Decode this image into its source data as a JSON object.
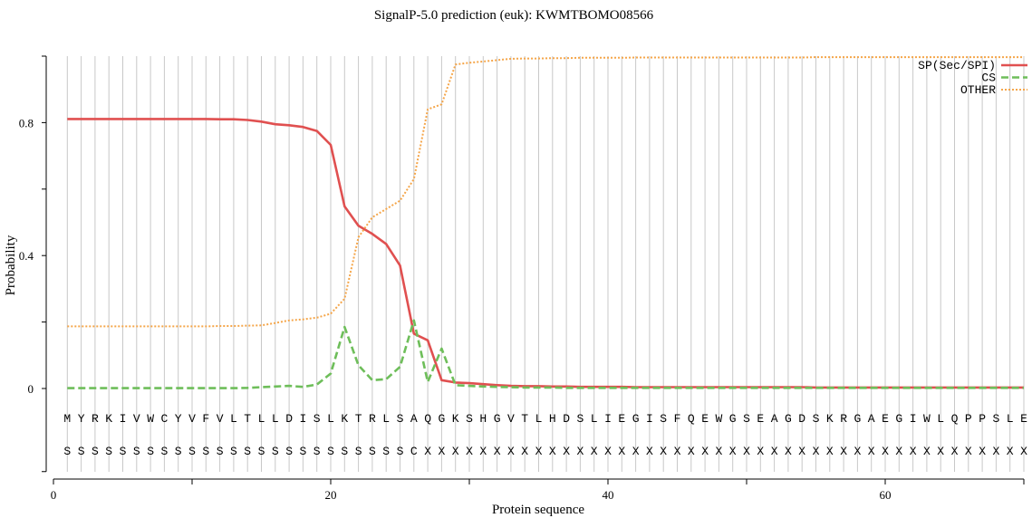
{
  "chart_data": {
    "type": "line",
    "title": "SignalP-5.0 prediction (euk):  KWMTBOMO08566",
    "xlabel": "Protein sequence",
    "ylabel": "Probability",
    "xlim": [
      0,
      70
    ],
    "ylim": [
      -0.25,
      1.0
    ],
    "xticks": [
      0,
      20,
      40,
      60
    ],
    "yticks": [
      0,
      0.4,
      0.8
    ],
    "grid": "vertical line at each residue position",
    "legend_position": "top-right",
    "sequence": [
      "M",
      "Y",
      "R",
      "K",
      "I",
      "V",
      "W",
      "C",
      "Y",
      "V",
      "F",
      "V",
      "L",
      "T",
      "L",
      "L",
      "D",
      "I",
      "S",
      "L",
      "K",
      "T",
      "R",
      "L",
      "S",
      "A",
      "Q",
      "G",
      "K",
      "S",
      "H",
      "G",
      "V",
      "T",
      "L",
      "H",
      "D",
      "S",
      "L",
      "I",
      "E",
      "G",
      "I",
      "S",
      "F",
      "Q",
      "E",
      "W",
      "G",
      "S",
      "E",
      "A",
      "G",
      "D",
      "S",
      "K",
      "R",
      "G",
      "A",
      "E",
      "G",
      "I",
      "W",
      "L",
      "Q",
      "P",
      "P",
      "S",
      "L",
      "E"
    ],
    "labels": [
      "S",
      "S",
      "S",
      "S",
      "S",
      "S",
      "S",
      "S",
      "S",
      "S",
      "S",
      "S",
      "S",
      "S",
      "S",
      "S",
      "S",
      "S",
      "S",
      "S",
      "S",
      "S",
      "S",
      "S",
      "S",
      "C",
      "X",
      "X",
      "X",
      "X",
      "X",
      "X",
      "X",
      "X",
      "X",
      "X",
      "X",
      "X",
      "X",
      "X",
      "X",
      "X",
      "X",
      "X",
      "X",
      "X",
      "X",
      "X",
      "X",
      "X",
      "X",
      "X",
      "X",
      "X",
      "X",
      "X",
      "X",
      "X",
      "X",
      "X",
      "X",
      "X",
      "X",
      "X",
      "X",
      "X",
      "X",
      "X",
      "X",
      "X"
    ],
    "series": [
      {
        "name": "SP(Sec/SPI)",
        "color": "#e05050",
        "style": "solid",
        "values": [
          0.811,
          0.811,
          0.811,
          0.811,
          0.811,
          0.811,
          0.811,
          0.811,
          0.811,
          0.811,
          0.811,
          0.81,
          0.81,
          0.808,
          0.803,
          0.795,
          0.792,
          0.787,
          0.775,
          0.733,
          0.548,
          0.49,
          0.465,
          0.435,
          0.37,
          0.165,
          0.145,
          0.025,
          0.018,
          0.016,
          0.013,
          0.01,
          0.008,
          0.007,
          0.007,
          0.006,
          0.006,
          0.005,
          0.005,
          0.005,
          0.005,
          0.004,
          0.004,
          0.004,
          0.004,
          0.004,
          0.004,
          0.004,
          0.004,
          0.004,
          0.004,
          0.004,
          0.004,
          0.004,
          0.003,
          0.003,
          0.003,
          0.003,
          0.003,
          0.003,
          0.003,
          0.003,
          0.003,
          0.003,
          0.003,
          0.003,
          0.003,
          0.003,
          0.003,
          0.003
        ]
      },
      {
        "name": "CS",
        "color": "#6ebe5a",
        "style": "dashed",
        "values": [
          0.001,
          0.001,
          0.001,
          0.001,
          0.001,
          0.001,
          0.001,
          0.001,
          0.001,
          0.001,
          0.001,
          0.001,
          0.001,
          0.002,
          0.004,
          0.006,
          0.008,
          0.005,
          0.012,
          0.045,
          0.185,
          0.07,
          0.025,
          0.028,
          0.065,
          0.205,
          0.02,
          0.12,
          0.01,
          0.008,
          0.006,
          0.005,
          0.004,
          0.003,
          0.003,
          0.003,
          0.002,
          0.002,
          0.002,
          0.002,
          0.002,
          0.002,
          0.002,
          0.002,
          0.002,
          0.002,
          0.002,
          0.002,
          0.002,
          0.002,
          0.002,
          0.002,
          0.002,
          0.002,
          0.002,
          0.002,
          0.002,
          0.002,
          0.002,
          0.002,
          0.002,
          0.002,
          0.002,
          0.002,
          0.002,
          0.002,
          0.002,
          0.002,
          0.002,
          0.002
        ]
      },
      {
        "name": "OTHER",
        "color": "#f5a64a",
        "style": "dotted",
        "values": [
          0.187,
          0.187,
          0.187,
          0.187,
          0.187,
          0.187,
          0.187,
          0.187,
          0.187,
          0.187,
          0.187,
          0.188,
          0.188,
          0.189,
          0.19,
          0.197,
          0.205,
          0.208,
          0.213,
          0.225,
          0.27,
          0.455,
          0.515,
          0.54,
          0.565,
          0.63,
          0.84,
          0.855,
          0.975,
          0.98,
          0.984,
          0.988,
          0.992,
          0.993,
          0.993,
          0.994,
          0.994,
          0.995,
          0.995,
          0.995,
          0.995,
          0.996,
          0.996,
          0.996,
          0.996,
          0.996,
          0.996,
          0.996,
          0.996,
          0.996,
          0.996,
          0.996,
          0.996,
          0.996,
          0.997,
          0.997,
          0.997,
          0.997,
          0.997,
          0.997,
          0.997,
          0.997,
          0.997,
          0.997,
          0.997,
          0.997,
          0.997,
          0.997,
          0.997,
          0.997
        ]
      }
    ]
  }
}
